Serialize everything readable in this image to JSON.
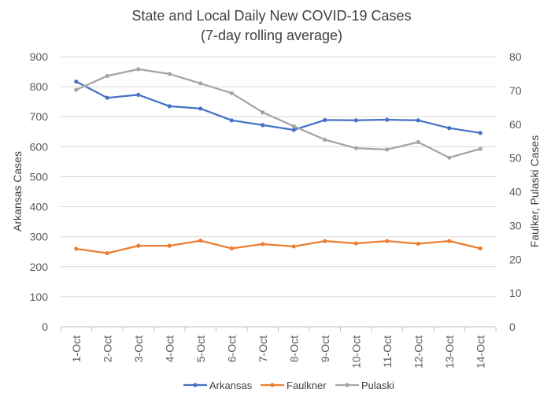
{
  "chart_data": {
    "type": "line",
    "title": "State and Local Daily New COVID-19 Cases",
    "subtitle": "(7-day rolling average)",
    "categories": [
      "1-Oct",
      "2-Oct",
      "3-Oct",
      "4-Oct",
      "5-Oct",
      "6-Oct",
      "7-Oct",
      "8-Oct",
      "9-Oct",
      "10-Oct",
      "11-Oct",
      "12-Oct",
      "13-Oct",
      "14-Oct"
    ],
    "ylabel": "Arkansas Cases",
    "y2label": "Faulker, Pulaski Cases",
    "ylim": [
      0,
      900
    ],
    "y2lim": [
      0,
      80
    ],
    "yticks": [
      "0",
      "100",
      "200",
      "300",
      "400",
      "500",
      "600",
      "700",
      "800",
      "900"
    ],
    "y2ticks": [
      "0",
      "10",
      "20",
      "30",
      "40",
      "50",
      "60",
      "70",
      "80"
    ],
    "legend_position": "bottom",
    "series": [
      {
        "name": "Arkansas",
        "axis": "left",
        "color": "#4472C4",
        "values": [
          817,
          763,
          773,
          735,
          727,
          688,
          672,
          656,
          689,
          688,
          690,
          688,
          662,
          646
        ]
      },
      {
        "name": "Faulkner",
        "axis": "right",
        "color": "#ED7D31",
        "values": [
          23.1,
          21.8,
          24.0,
          24.0,
          25.5,
          23.2,
          24.5,
          23.8,
          25.4,
          24.7,
          25.4,
          24.6,
          25.4,
          23.2
        ]
      },
      {
        "name": "Pulaski",
        "axis": "right",
        "color": "#A5A5A5",
        "values": [
          70.2,
          74.3,
          76.3,
          74.9,
          72.1,
          69.2,
          63.5,
          59.4,
          55.4,
          52.9,
          52.5,
          54.7,
          50.1,
          52.7
        ]
      }
    ]
  }
}
